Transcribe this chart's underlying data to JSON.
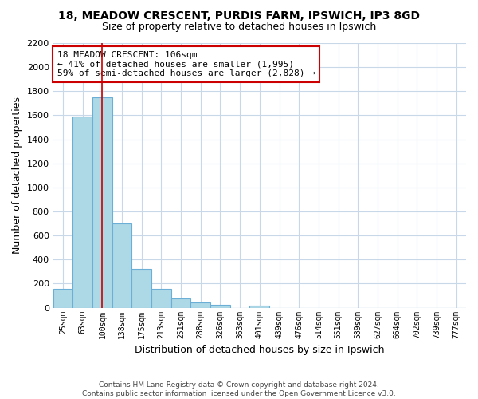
{
  "title": "18, MEADOW CRESCENT, PURDIS FARM, IPSWICH, IP3 8GD",
  "subtitle": "Size of property relative to detached houses in Ipswich",
  "xlabel": "Distribution of detached houses by size in Ipswich",
  "ylabel": "Number of detached properties",
  "categories": [
    "25sqm",
    "63sqm",
    "100sqm",
    "138sqm",
    "175sqm",
    "213sqm",
    "251sqm",
    "288sqm",
    "326sqm",
    "363sqm",
    "401sqm",
    "439sqm",
    "476sqm",
    "514sqm",
    "551sqm",
    "589sqm",
    "627sqm",
    "664sqm",
    "702sqm",
    "739sqm",
    "777sqm"
  ],
  "values": [
    160,
    1590,
    1750,
    700,
    320,
    155,
    80,
    45,
    25,
    0,
    15,
    0,
    0,
    0,
    0,
    0,
    0,
    0,
    0,
    0,
    0
  ],
  "bar_color": "#add8e6",
  "bar_edge_color": "#6baed6",
  "highlight_line_color": "#cc0000",
  "annotation_line1": "18 MEADOW CRESCENT: 106sqm",
  "annotation_line2": "← 41% of detached houses are smaller (1,995)",
  "annotation_line3": "59% of semi-detached houses are larger (2,828) →",
  "annotation_box_color": "#ffffff",
  "annotation_box_edge": "#cc0000",
  "ylim": [
    0,
    2200
  ],
  "yticks": [
    0,
    200,
    400,
    600,
    800,
    1000,
    1200,
    1400,
    1600,
    1800,
    2000,
    2200
  ],
  "footnote_line1": "Contains HM Land Registry data © Crown copyright and database right 2024.",
  "footnote_line2": "Contains public sector information licensed under the Open Government Licence v3.0.",
  "background_color": "#ffffff",
  "grid_color": "#c8d8e8"
}
